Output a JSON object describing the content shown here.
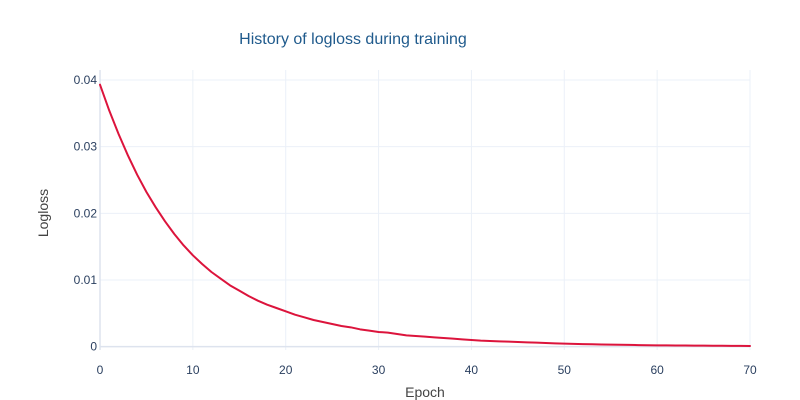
{
  "chart_data": {
    "type": "line",
    "title": "History of logloss during training",
    "xlabel": "Epoch",
    "ylabel": "Logloss",
    "xlim": [
      0,
      70
    ],
    "ylim": [
      -0.0005,
      0.0415
    ],
    "x_ticks": [
      "0",
      "10",
      "20",
      "30",
      "40",
      "50",
      "60",
      "70"
    ],
    "y_ticks": [
      "0",
      "0.01",
      "0.02",
      "0.03",
      "0.04"
    ],
    "grid": true,
    "legend": "none",
    "series": [
      {
        "color": "#dc143c",
        "x": [
          0,
          1,
          2,
          3,
          4,
          5,
          6,
          7,
          8,
          9,
          10,
          11,
          12,
          13,
          14,
          15,
          16,
          17,
          18,
          19,
          20,
          21,
          22,
          23,
          24,
          25,
          26,
          27,
          28,
          29,
          30,
          31,
          32,
          33,
          34,
          35,
          36,
          37,
          38,
          39,
          40,
          41,
          42,
          43,
          44,
          45,
          46,
          47,
          48,
          49,
          50,
          51,
          52,
          53,
          54,
          55,
          56,
          57,
          58,
          59,
          60,
          61,
          62,
          63,
          64,
          65,
          66,
          67,
          68,
          69,
          70
        ],
        "y": [
          0.0393,
          0.0354,
          0.0319,
          0.0287,
          0.0258,
          0.0232,
          0.0209,
          0.0188,
          0.0169,
          0.0152,
          0.0137,
          0.0124,
          0.0112,
          0.0102,
          0.0092,
          0.0084,
          0.0076,
          0.0069,
          0.0063,
          0.0058,
          0.0053,
          0.0048,
          0.0044,
          0.004,
          0.0037,
          0.0034,
          0.0031,
          0.0029,
          0.0026,
          0.0024,
          0.0022,
          0.0021,
          0.0019,
          0.0017,
          0.0016,
          0.0015,
          0.0014,
          0.0013,
          0.0012,
          0.0011,
          0.001,
          0.0009,
          0.00085,
          0.0008,
          0.00075,
          0.0007,
          0.00065,
          0.0006,
          0.00055,
          0.0005,
          0.00045,
          0.00042,
          0.00039,
          0.00036,
          0.00033,
          0.0003,
          0.00028,
          0.00026,
          0.00024,
          0.00022,
          0.0002,
          0.00019,
          0.00018,
          0.00017,
          0.00016,
          0.00015,
          0.00014,
          0.00013,
          0.00012,
          0.00011,
          0.0001
        ]
      }
    ]
  },
  "colors": {
    "title": "#1f5a8c",
    "line": "#dc143c"
  }
}
